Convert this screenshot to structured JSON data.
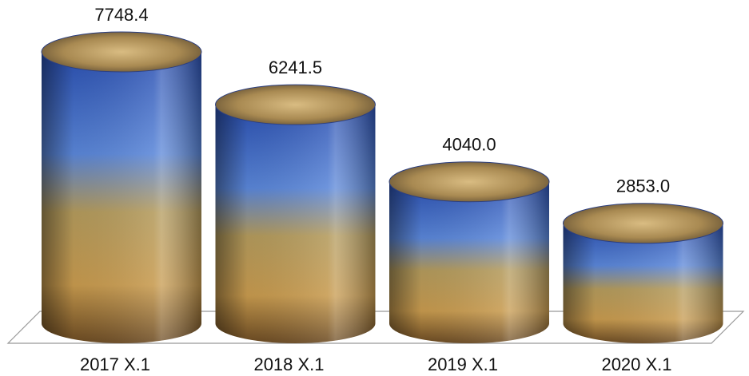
{
  "chart_data": {
    "type": "bar",
    "categories": [
      "2017 X.1",
      "2018 X.1",
      "2019 X.1",
      "2020 X.1"
    ],
    "values": [
      7748.4,
      6241.5,
      4040.0,
      2853.0
    ],
    "value_labels": [
      "7748.4",
      "6241.5",
      "4040.0",
      "2853.0"
    ]
  }
}
